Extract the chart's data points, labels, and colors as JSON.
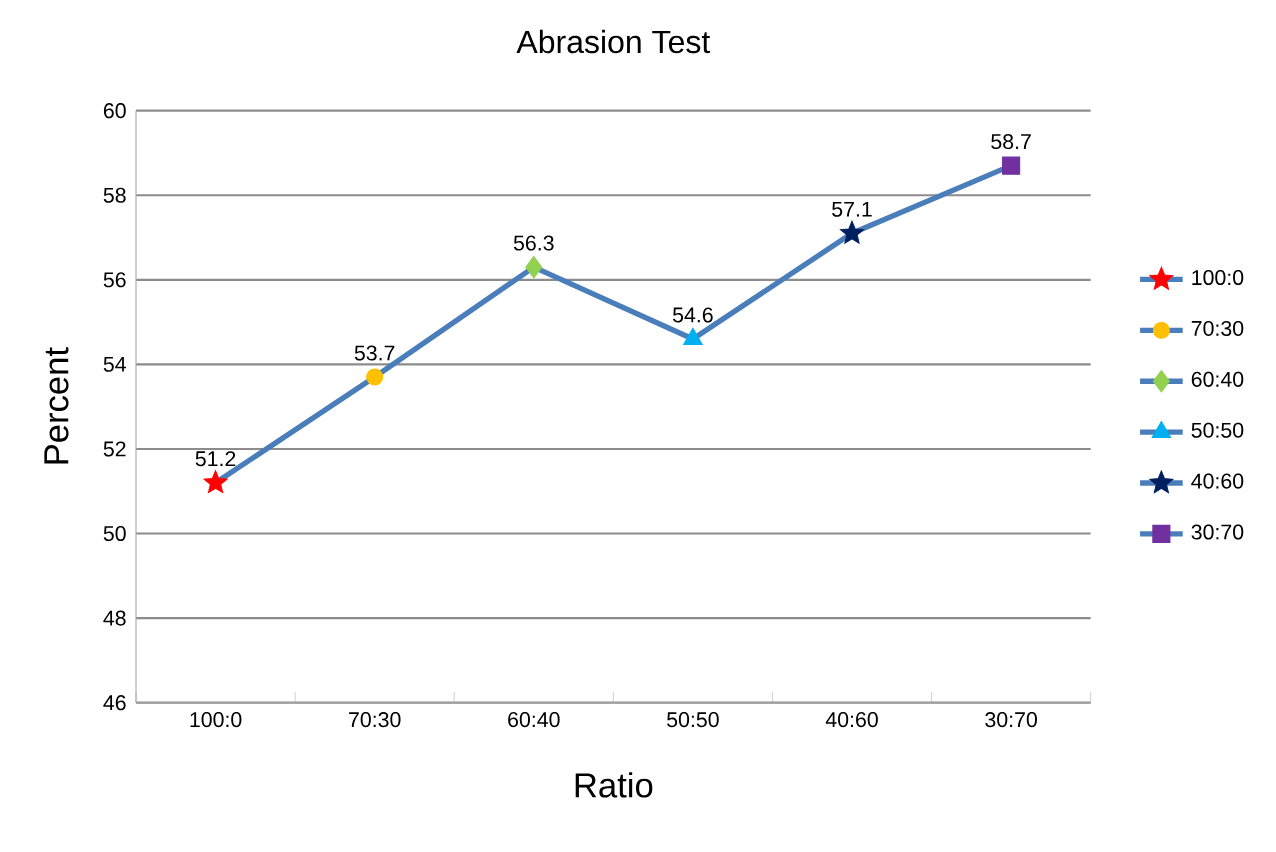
{
  "chart_data": {
    "type": "line",
    "title": "Abrasion Test",
    "xlabel": "Ratio",
    "ylabel": "Percent",
    "categories": [
      "100:0",
      "70:30",
      "60:40",
      "50:50",
      "40:60",
      "30:70"
    ],
    "series": [
      {
        "type": "line",
        "color": "#4a7ebb",
        "values": [
          51.2,
          53.7,
          56.3,
          54.6,
          57.1,
          58.7
        ],
        "value_labels": [
          "51.2",
          "53.7",
          "56.3",
          "54.6",
          "57.1",
          "58.7"
        ]
      },
      {
        "type": "scatter",
        "name": "100:0",
        "color": "#ff0000",
        "marker": "star",
        "values": [
          51.2,
          null,
          null,
          null,
          null,
          null
        ]
      },
      {
        "type": "scatter",
        "name": "70:30",
        "color": "#ffc000",
        "marker": "circle",
        "values": [
          null,
          53.7,
          null,
          null,
          null,
          null
        ]
      },
      {
        "type": "scatter",
        "name": "60:40",
        "color": "#92d050",
        "marker": "diamond",
        "values": [
          null,
          null,
          56.3,
          null,
          null,
          null
        ]
      },
      {
        "type": "scatter",
        "name": "50:50",
        "color": "#00b0f0",
        "marker": "triangle",
        "values": [
          null,
          null,
          null,
          54.6,
          null,
          null
        ]
      },
      {
        "type": "scatter",
        "name": "40:60",
        "color": "#002060",
        "marker": "star",
        "values": [
          null,
          null,
          null,
          null,
          57.1,
          null
        ]
      },
      {
        "type": "scatter",
        "name": "30:70",
        "color": "#7030a0",
        "marker": "square",
        "values": [
          null,
          null,
          null,
          null,
          null,
          58.7
        ]
      }
    ],
    "ylim": [
      46,
      60
    ],
    "yticks": [
      46,
      48,
      50,
      52,
      54,
      56,
      58,
      60
    ],
    "grid": "y",
    "legend": "right"
  }
}
